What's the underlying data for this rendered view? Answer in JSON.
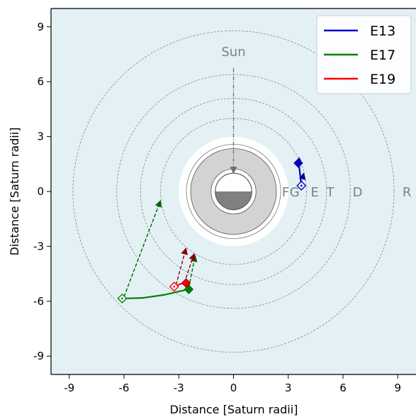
{
  "chart_data": {
    "type": "line",
    "xlabel": "Distance [Saturn radii]",
    "ylabel": "Distance [Saturn radii]",
    "xlim": [
      -10,
      10
    ],
    "ylim": [
      -10,
      10
    ],
    "xticks": [
      -9,
      -6,
      -3,
      0,
      3,
      6,
      9
    ],
    "yticks": [
      -9,
      -6,
      -3,
      0,
      3,
      6,
      9
    ],
    "xtick_labels": [
      "-9",
      "-6",
      "-3",
      "0",
      "3",
      "6",
      "9"
    ],
    "ytick_labels": [
      "-9",
      "-6",
      "-3",
      "0",
      "3",
      "6",
      "9"
    ],
    "grid": false,
    "background_color": "#e3f1f5",
    "sun_label": "Sun",
    "ring_labels": [
      {
        "text": "F",
        "x": 2.85
      },
      {
        "text": "G",
        "x": 3.35
      },
      {
        "text": "E",
        "x": 4.45
      },
      {
        "text": "T",
        "x": 5.3
      },
      {
        "text": "D",
        "x": 6.8
      },
      {
        "text": "R",
        "x": 9.5
      }
    ],
    "orbit_radii": [
      4.0,
      5.1,
      6.4,
      8.8
    ],
    "planet": {
      "radius": 1.0,
      "ring_outer": 2.35,
      "clear_radius": 3.0
    },
    "legend": {
      "position": "upper right",
      "entries": [
        "E13",
        "E17",
        "E19"
      ]
    },
    "series": [
      {
        "name": "E13",
        "color": "#0000cc",
        "path": [
          [
            3.55,
            1.65
          ],
          [
            3.62,
            1.2
          ],
          [
            3.67,
            0.75
          ],
          [
            3.72,
            0.3
          ]
        ],
        "start": [
          3.55,
          1.55
        ],
        "end": [
          3.72,
          0.32
        ],
        "arrows": [
          [
            3.7,
            0.4,
            3.85,
            1.0
          ],
          [
            3.6,
            1.2,
            3.6,
            1.85
          ]
        ]
      },
      {
        "name": "E17",
        "color": "#008000",
        "path": [
          [
            -6.1,
            -5.85
          ],
          [
            -5.0,
            -5.82
          ],
          [
            -3.8,
            -5.65
          ],
          [
            -2.5,
            -5.35
          ]
        ],
        "start": [
          -2.45,
          -5.35
        ],
        "end": [
          -6.1,
          -5.85
        ],
        "arrows": [
          [
            -6.0,
            -5.75,
            -4.0,
            -0.5
          ],
          [
            -2.45,
            -5.25,
            -2.1,
            -3.5
          ]
        ]
      },
      {
        "name": "E19",
        "color": "#ff0000",
        "path": [
          [
            -3.25,
            -5.2
          ],
          [
            -2.9,
            -5.05
          ],
          [
            -2.6,
            -5.0
          ]
        ],
        "start": [
          -2.6,
          -5.0
        ],
        "end": [
          -3.25,
          -5.2
        ],
        "arrows": [
          [
            -3.15,
            -5.1,
            -2.6,
            -3.1
          ],
          [
            -2.7,
            -5.0,
            -2.15,
            -3.4
          ]
        ]
      }
    ]
  }
}
